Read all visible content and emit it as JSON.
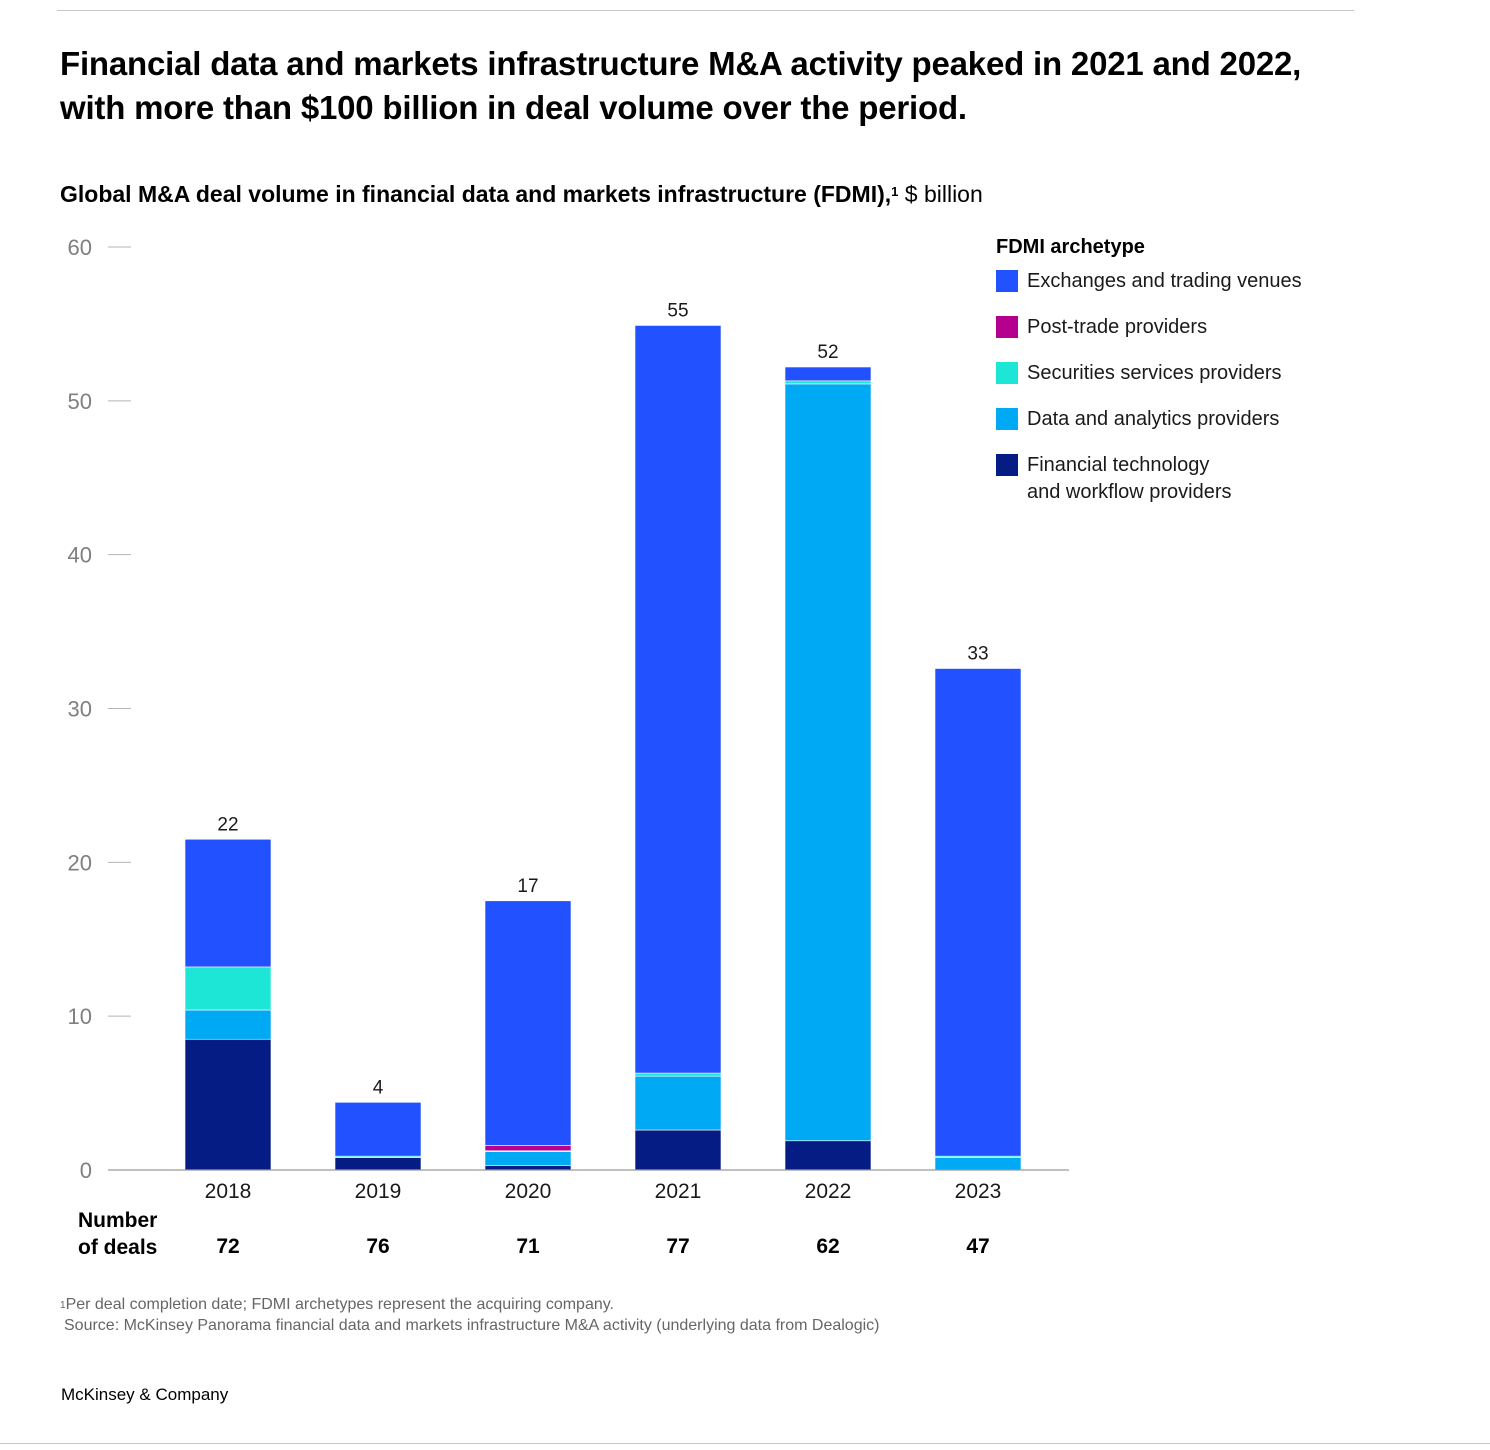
{
  "headline": "Financial data and markets infrastructure M&A activity peaked in 2021 and 2022, with more than $100 billion in deal volume over the period.",
  "subtitle": {
    "text": "Global M&A deal volume in financial data and markets infrastructure (FDMI),",
    "footnote_ref": "1",
    "unit": "$ billion"
  },
  "legend": {
    "title": "FDMI archetype",
    "items": [
      {
        "label": "Exchanges and trading venues",
        "color": "#2251ff"
      },
      {
        "label": "Post-trade providers",
        "color": "#b5008f"
      },
      {
        "label": "Securities services providers",
        "color": "#1ee6d6"
      },
      {
        "label": "Data and analytics providers",
        "color": "#00a9f4"
      },
      {
        "label": "Financial technology\nand workflow providers",
        "color": "#051c84"
      }
    ]
  },
  "chart_data": {
    "type": "bar",
    "stacked": true,
    "categories": [
      "2018",
      "2019",
      "2020",
      "2021",
      "2022",
      "2023"
    ],
    "series": [
      {
        "name": "Financial technology and workflow providers",
        "color": "#051c84",
        "values": [
          8.5,
          0.8,
          0.3,
          2.6,
          1.9,
          0.0
        ]
      },
      {
        "name": "Data and analytics providers",
        "color": "#00a9f4",
        "values": [
          1.9,
          0.0,
          0.9,
          3.5,
          49.2,
          0.8
        ]
      },
      {
        "name": "Securities services providers",
        "color": "#1ee6d6",
        "values": [
          2.8,
          0.1,
          0.05,
          0.2,
          0.2,
          0.1
        ]
      },
      {
        "name": "Post-trade providers",
        "color": "#b5008f",
        "values": [
          0.0,
          0.0,
          0.35,
          0.0,
          0.0,
          0.0
        ]
      },
      {
        "name": "Exchanges and trading venues",
        "color": "#2251ff",
        "values": [
          8.3,
          3.5,
          15.9,
          48.6,
          0.9,
          31.7
        ]
      }
    ],
    "totals": [
      "22",
      "4",
      "17",
      "55",
      "52",
      "33"
    ],
    "deals_label": [
      "Number",
      "of deals"
    ],
    "deals": [
      "72",
      "76",
      "71",
      "77",
      "62",
      "47"
    ],
    "y_ticks": [
      "0",
      "10",
      "20",
      "30",
      "40",
      "50",
      "60"
    ],
    "ylim": [
      0,
      60
    ],
    "grid": false
  },
  "footnote": {
    "ref": "1",
    "text": "Per deal completion date; FDMI archetypes represent the acquiring company.",
    "source": "Source: McKinsey Panorama financial data and markets infrastructure M&A activity (underlying data from Dealogic)"
  },
  "brand": "McKinsey & Company"
}
